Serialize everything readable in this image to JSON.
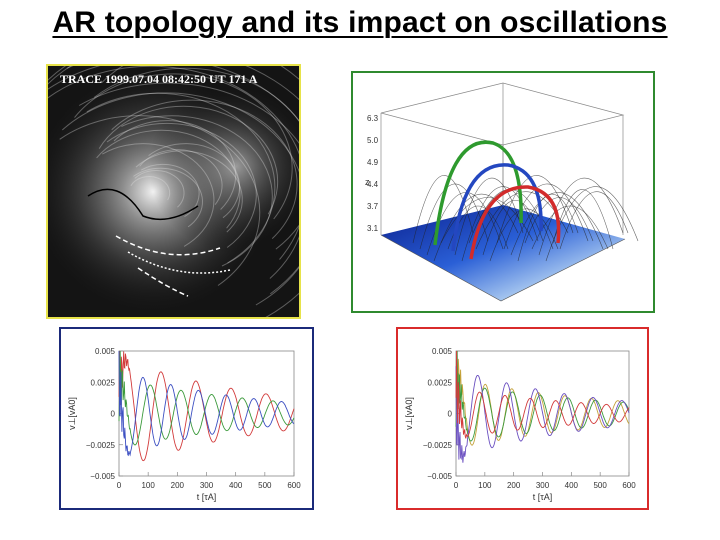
{
  "slide": {
    "title": "AR topology and its impact on oscillations"
  },
  "trace_image": {
    "label": "TRACE 1999.07.04 08:42:50 UT 171 A"
  },
  "model_3d": {
    "z_ticks": [
      "6.3",
      "5.0",
      "4.9",
      "4.4",
      "3.7",
      "3.1"
    ],
    "z_label": "z"
  },
  "chart_data": [
    {
      "type": "line",
      "id": "left",
      "xlabel": "t [τA]",
      "ylabel": "v⊥[vA0]",
      "xlim": [
        0,
        600
      ],
      "ylim": [
        -0.005,
        0.005
      ],
      "x_ticks": [
        0,
        100,
        200,
        300,
        400,
        500,
        600
      ],
      "x_tick_labels": [
        "0",
        "100",
        "200",
        "300",
        "400",
        "500",
        "600"
      ],
      "y_ticks": [
        0.005,
        0.0025,
        0,
        -0.0025,
        -0.005
      ],
      "y_tick_labels": [
        "0.005",
        "0.0025",
        "0",
        "−0.0025",
        "−0.005"
      ],
      "series": [
        {
          "color": "#d23b3b",
          "period": 120,
          "amp": 0.0045,
          "decay": 480,
          "phase": 0.3
        },
        {
          "color": "#3c9a3c",
          "period": 105,
          "amp": 0.0028,
          "decay": 520,
          "phase": 1.4
        },
        {
          "color": "#3c4fc2",
          "period": 95,
          "amp": 0.0035,
          "decay": 430,
          "phase": 2.4
        }
      ]
    },
    {
      "type": "line",
      "id": "right",
      "xlabel": "t [τA]",
      "ylabel": "v⊥[vA0]",
      "xlim": [
        0,
        600
      ],
      "ylim": [
        -0.005,
        0.005
      ],
      "x_ticks": [
        0,
        100,
        200,
        300,
        400,
        500,
        600
      ],
      "x_tick_labels": [
        "0",
        "100",
        "200",
        "300",
        "400",
        "500",
        "600"
      ],
      "y_ticks": [
        0.005,
        0.0025,
        0,
        -0.0025,
        -0.005
      ],
      "y_tick_labels": [
        "0.005",
        "0.0025",
        "0",
        "−0.0025",
        "−0.005"
      ],
      "series": [
        {
          "color": "#c4a23a",
          "period": 92,
          "amp": 0.0028,
          "decay": 560,
          "phase": 0.9
        },
        {
          "color": "#3c9a3c",
          "period": 96,
          "amp": 0.0024,
          "decay": 600,
          "phase": 1.3
        },
        {
          "color": "#6a4fc0",
          "period": 100,
          "amp": 0.0036,
          "decay": 460,
          "phase": 3.1
        },
        {
          "color": "#d23b3b",
          "period": 88,
          "amp": 0.002,
          "decay": 520,
          "phase": 2.0
        }
      ]
    }
  ]
}
